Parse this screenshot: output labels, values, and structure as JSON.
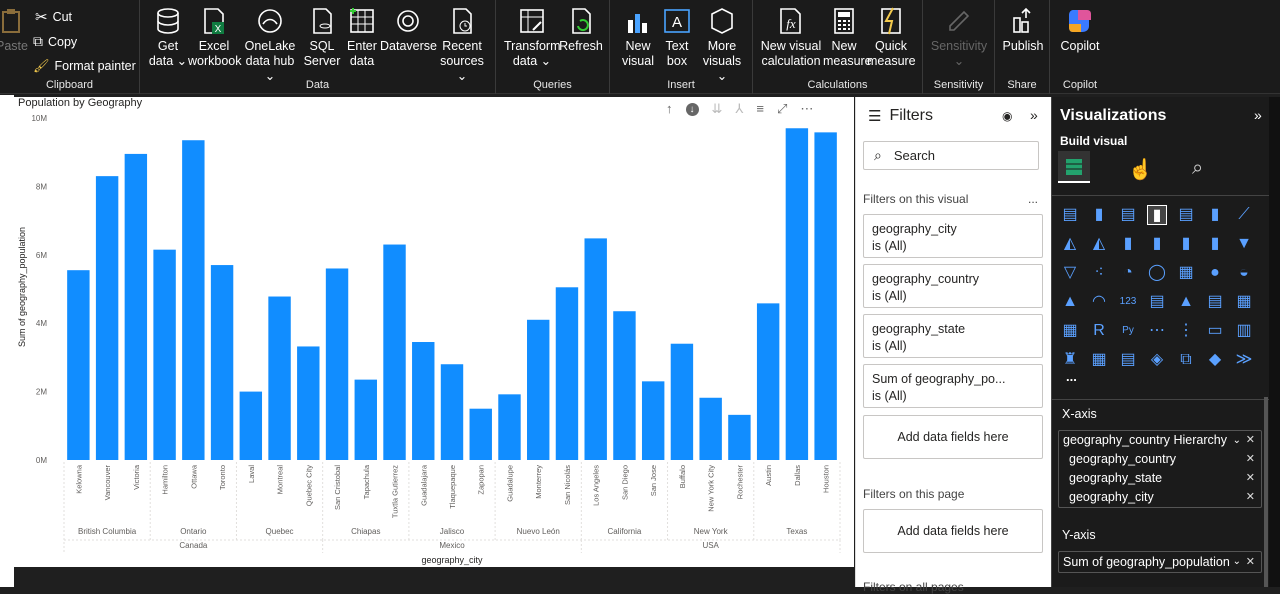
{
  "ribbon": {
    "clipboard": {
      "paste": "Paste",
      "cut": "Cut",
      "copy": "Copy",
      "format_painter": "Format painter",
      "label": "Clipboard"
    },
    "data": {
      "get_data": [
        "Get",
        "data ⌄"
      ],
      "excel": [
        "Excel",
        "workbook"
      ],
      "onelake": [
        "OneLake",
        "data hub ⌄"
      ],
      "sql": [
        "SQL",
        "Server"
      ],
      "enter": [
        "Enter",
        "data"
      ],
      "dataverse": [
        "Dataverse",
        ""
      ],
      "recent": [
        "Recent",
        "sources ⌄"
      ],
      "label": "Data"
    },
    "queries": {
      "transform": [
        "Transform",
        "data ⌄"
      ],
      "refresh": [
        "Refresh",
        ""
      ],
      "label": "Queries"
    },
    "insert": {
      "new_visual": [
        "New",
        "visual"
      ],
      "text_box": [
        "Text",
        "box"
      ],
      "more_visuals": [
        "More",
        "visuals ⌄"
      ],
      "label": "Insert"
    },
    "calculations": {
      "new_visual_calc": [
        "New visual",
        "calculation"
      ],
      "new_measure": [
        "New",
        "measure"
      ],
      "quick_measure": [
        "Quick",
        "measure"
      ],
      "label": "Calculations"
    },
    "sensitivity": {
      "btn": [
        "Sensitivity",
        "⌄"
      ],
      "label": "Sensitivity"
    },
    "share": {
      "publish": [
        "Publish",
        ""
      ],
      "label": "Share"
    },
    "copilot": {
      "btn": [
        "Copilot",
        ""
      ],
      "label": "Copilot"
    }
  },
  "chart_data": {
    "type": "bar",
    "title": "Population by Geography",
    "xlabel": "geography_city",
    "ylabel": "Sum of geography_population",
    "ylim": [
      0,
      10000000
    ],
    "yticks": [
      {
        "v": 0,
        "t": "0M"
      },
      {
        "v": 2000000,
        "t": "2M"
      },
      {
        "v": 4000000,
        "t": "4M"
      },
      {
        "v": 6000000,
        "t": "6M"
      },
      {
        "v": 8000000,
        "t": "8M"
      },
      {
        "v": 10000000,
        "t": "10M"
      }
    ],
    "color": "#118DFF",
    "categories": [
      "Kelowna",
      "Vancouver",
      "Victoria",
      "Hamilton",
      "Ottawa",
      "Toronto",
      "Laval",
      "Montreal",
      "Quebec City",
      "San Cristobal",
      "Tapachula",
      "Tuxtla Gutierrez",
      "Guadalajara",
      "Tlaquepaque",
      "Zapopan",
      "Guadalupe",
      "Monterrey",
      "San Nicolás",
      "Los Angeles",
      "San Diego",
      "San Jose",
      "Buffalo",
      "New York City",
      "Rochester",
      "Austin",
      "Dallas",
      "Houston"
    ],
    "values": [
      5550000,
      8300000,
      8950000,
      6150000,
      9350000,
      5700000,
      2000000,
      4780000,
      3320000,
      5600000,
      2350000,
      6300000,
      3450000,
      2800000,
      1500000,
      1920000,
      4100000,
      5050000,
      6480000,
      4350000,
      2300000,
      3400000,
      1820000,
      1320000,
      4580000,
      9700000,
      9580000
    ],
    "states": [
      {
        "name": "British Columbia",
        "span": 3
      },
      {
        "name": "Ontario",
        "span": 3
      },
      {
        "name": "Quebec",
        "span": 3
      },
      {
        "name": "Chiapas",
        "span": 3
      },
      {
        "name": "Jalisco",
        "span": 3
      },
      {
        "name": "Nuevo León",
        "span": 3
      },
      {
        "name": "California",
        "span": 3
      },
      {
        "name": "New York",
        "span": 3
      },
      {
        "name": "Texas",
        "span": 3
      }
    ],
    "countries": [
      {
        "name": "Canada",
        "span": 9
      },
      {
        "name": "Mexico",
        "span": 9
      },
      {
        "name": "USA",
        "span": 9
      }
    ]
  },
  "filters": {
    "title": "Filters",
    "search_placeholder": "Search",
    "on_visual": "Filters on this visual",
    "cards": [
      {
        "name": "geography_city",
        "state": "is (All)"
      },
      {
        "name": "geography_country",
        "state": "is (All)"
      },
      {
        "name": "geography_state",
        "state": "is (All)"
      },
      {
        "name": "Sum of geography_po...",
        "state": "is (All)"
      }
    ],
    "add_fields": "Add data fields here",
    "on_page": "Filters on this page",
    "add_fields_page": "Add data fields here",
    "on_all_pages": "Filters on all pages",
    "more": "..."
  },
  "viz": {
    "title": "Visualizations",
    "build": "Build visual",
    "more": "...",
    "xaxis_label": "X-axis",
    "xaxis_fields": [
      "geography_country Hierarchy",
      "geography_country",
      "geography_state",
      "geography_city"
    ],
    "yaxis_label": "Y-axis",
    "yaxis_fields": [
      "Sum of geography_population"
    ]
  }
}
